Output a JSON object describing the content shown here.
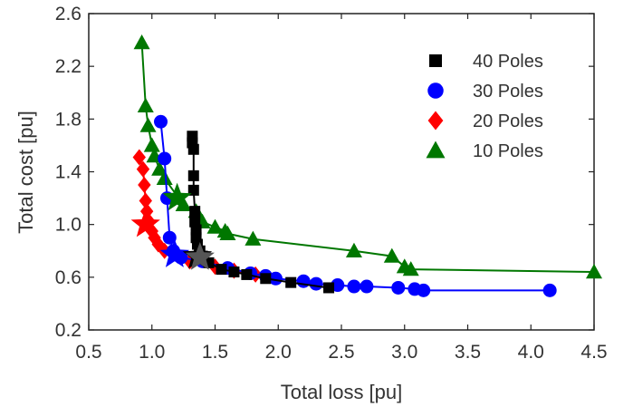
{
  "chart_data": {
    "type": "scatter",
    "xlabel": "Total loss [pu]",
    "ylabel": "Total cost [pu]",
    "xlim": [
      0.5,
      4.5
    ],
    "ylim": [
      0.2,
      2.6
    ],
    "xticks": [
      "0.5",
      "1.0",
      "1.5",
      "2.0",
      "2.5",
      "3.0",
      "3.5",
      "4.0",
      "4.5"
    ],
    "yticks": [
      "0.2",
      "0.6",
      "1.0",
      "1.4",
      "1.8",
      "2.2",
      "2.6"
    ],
    "grid": false,
    "legend": "top-right",
    "series": [
      {
        "name": "40 Poles",
        "color": "#000000",
        "marker": "square",
        "x": [
          1.32,
          1.32,
          1.33,
          1.33,
          1.33,
          1.34,
          1.34,
          1.35,
          1.35,
          1.36,
          1.38,
          1.4,
          1.45,
          1.55,
          1.65,
          1.75,
          1.9,
          2.1,
          2.4
        ],
        "y": [
          1.67,
          1.62,
          1.57,
          1.37,
          1.26,
          1.1,
          1.02,
          0.96,
          0.9,
          0.85,
          0.8,
          0.76,
          0.71,
          0.66,
          0.64,
          0.62,
          0.59,
          0.56,
          0.52
        ],
        "best": {
          "x": 1.36,
          "y": 0.76
        }
      },
      {
        "name": "30 Poles",
        "color": "#0000ff",
        "marker": "circle",
        "x": [
          1.07,
          1.1,
          1.12,
          1.14,
          1.17,
          1.23,
          1.4,
          1.6,
          1.78,
          1.9,
          1.98,
          2.2,
          2.3,
          2.47,
          2.6,
          2.7,
          2.95,
          3.08,
          3.15,
          4.15
        ],
        "y": [
          1.78,
          1.5,
          1.2,
          0.9,
          0.8,
          0.75,
          0.72,
          0.67,
          0.63,
          0.61,
          0.59,
          0.57,
          0.55,
          0.54,
          0.53,
          0.53,
          0.52,
          0.51,
          0.5,
          0.5
        ],
        "best": {
          "x": 1.18,
          "y": 0.77
        }
      },
      {
        "name": "20 Poles",
        "color": "#ff0000",
        "marker": "diamond",
        "x": [
          0.9,
          0.93,
          0.94,
          0.95,
          0.96,
          0.98,
          1.0,
          1.02,
          1.05,
          1.1,
          1.3,
          1.5,
          1.65,
          1.82
        ],
        "y": [
          1.51,
          1.42,
          1.3,
          1.18,
          1.1,
          1.02,
          0.95,
          0.9,
          0.85,
          0.8,
          0.72,
          0.68,
          0.65,
          0.62
        ],
        "best": {
          "x": 0.95,
          "y": 1.0
        }
      },
      {
        "name": "10 Poles",
        "color": "#007700",
        "marker": "triangle",
        "x": [
          0.92,
          0.95,
          0.97,
          1.0,
          1.02,
          1.06,
          1.1,
          1.25,
          1.35,
          1.4,
          1.5,
          1.58,
          1.6,
          1.8,
          2.6,
          2.9,
          3.0,
          3.05,
          4.5
        ],
        "y": [
          2.38,
          1.9,
          1.75,
          1.6,
          1.52,
          1.42,
          1.35,
          1.15,
          1.1,
          1.02,
          0.98,
          0.95,
          0.93,
          0.89,
          0.8,
          0.76,
          0.68,
          0.66,
          0.64
        ],
        "best": {
          "x": 1.2,
          "y": 1.2
        }
      }
    ],
    "best_marker_color": "#555555",
    "best_marker": {
      "x": 1.38,
      "y": 0.75
    }
  }
}
